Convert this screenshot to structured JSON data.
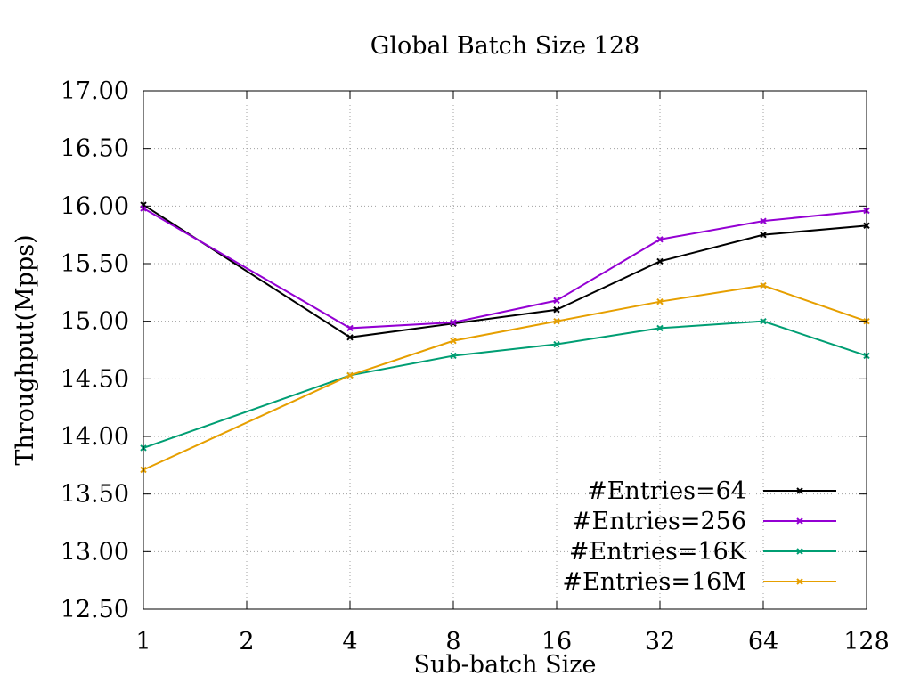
{
  "chart_data": {
    "type": "line",
    "title": "Global Batch Size 128",
    "xlabel": "Sub-batch Size",
    "ylabel": "Throughput(Mpps)",
    "x": [
      "1",
      "2",
      "4",
      "8",
      "16",
      "32",
      "64",
      "128"
    ],
    "xscale": "log2",
    "ylim": [
      12.5,
      17.0
    ],
    "yticks": [
      "12.50",
      "13.00",
      "13.50",
      "14.00",
      "14.50",
      "15.00",
      "15.50",
      "16.00",
      "16.50",
      "17.00"
    ],
    "grid": true,
    "legend_position": "bottom-right",
    "series": [
      {
        "name": "#Entries=64",
        "color": "#000000",
        "x": [
          1,
          4,
          8,
          16,
          32,
          64,
          128
        ],
        "values": [
          16.01,
          14.86,
          14.98,
          15.1,
          15.52,
          15.75,
          15.83
        ]
      },
      {
        "name": "#Entries=256",
        "color": "#9400d3",
        "x": [
          1,
          4,
          8,
          16,
          32,
          64,
          128
        ],
        "values": [
          15.98,
          14.94,
          14.99,
          15.18,
          15.71,
          15.87,
          15.96
        ]
      },
      {
        "name": "#Entries=16K",
        "color": "#009e73",
        "x": [
          1,
          4,
          8,
          16,
          32,
          64,
          128
        ],
        "values": [
          13.9,
          14.53,
          14.7,
          14.8,
          14.94,
          15.0,
          14.7
        ]
      },
      {
        "name": "#Entries=16M",
        "color": "#e69f00",
        "x": [
          1,
          4,
          8,
          16,
          32,
          64,
          128
        ],
        "values": [
          13.71,
          14.53,
          14.83,
          15.0,
          15.17,
          15.31,
          15.0
        ]
      }
    ]
  }
}
